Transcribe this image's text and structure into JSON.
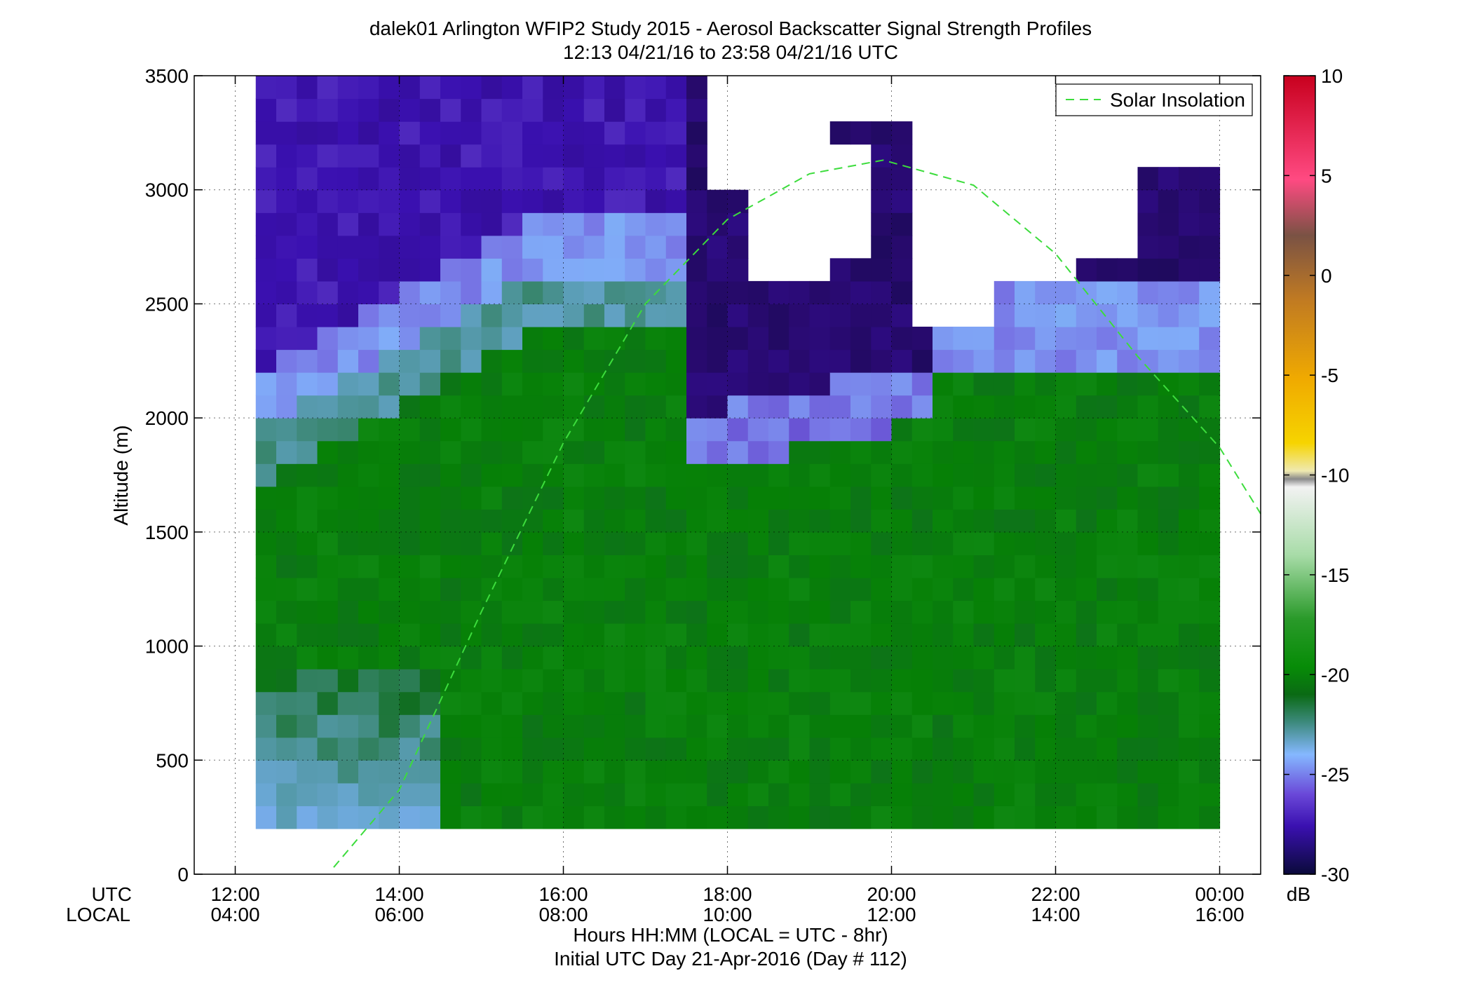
{
  "chart_data": {
    "type": "heatmap",
    "title": "dalek01 Arlington WFIP2 Study 2015 - Aerosol Backscatter Signal Strength Profiles",
    "subtitle": "12:13 04/21/16 to 23:58 04/21/16  UTC",
    "ylabel": "Altitude (m)",
    "xlabel": "Hours HH:MM  (LOCAL = UTC - 8hr)",
    "xlabel2": "Initial UTC Day 21-Apr-2016 (Day # 112)",
    "row_labels": [
      "UTC",
      "LOCAL"
    ],
    "x_ticks_utc": [
      "12:00",
      "14:00",
      "16:00",
      "18:00",
      "20:00",
      "22:00",
      "00:00"
    ],
    "x_ticks_local": [
      "04:00",
      "06:00",
      "08:00",
      "10:00",
      "12:00",
      "14:00",
      "16:00"
    ],
    "x_range_hours_utc": [
      11.5,
      24.5
    ],
    "y_ticks": [
      "0",
      "500",
      "1000",
      "1500",
      "2000",
      "2500",
      "3000",
      "3500"
    ],
    "y_range_m": [
      0,
      3500
    ],
    "grid": true,
    "legend": {
      "placement": "top-right",
      "entries": [
        "Solar Insolation"
      ]
    },
    "colorbar": {
      "label": "dB",
      "ticks": [
        "10",
        "5",
        "0",
        "-5",
        "-10",
        "-15",
        "-20",
        "-25",
        "-30"
      ],
      "range": [
        -30,
        10
      ]
    },
    "cell_size": {
      "hours": 0.25,
      "meters": 100
    },
    "data_x_range_hours_utc": [
      12.25,
      24.0
    ],
    "data_y_range_m": [
      200,
      3500
    ],
    "no_data_regions_hours_utc_m": [
      [
        17.75,
        18.25,
        3000,
        3500
      ],
      [
        18.25,
        19.25,
        2600,
        3500
      ],
      [
        19.25,
        20.25,
        3300,
        3500
      ],
      [
        19.25,
        19.75,
        2700,
        3200
      ],
      [
        20.25,
        21.25,
        2400,
        3500
      ],
      [
        21.25,
        22.25,
        2600,
        3500
      ],
      [
        22.25,
        23.0,
        2700,
        3500
      ],
      [
        23.0,
        24.0,
        3100,
        3500
      ]
    ],
    "dominant_signal_by_layer_db": [
      {
        "layer": "200-900 m, before 14:30 UTC",
        "db": -22
      },
      {
        "layer": "200-2500 m, 14:30-24:00 UTC",
        "db": -18
      },
      {
        "layer": "2500-3500 m, before 17:30 UTC",
        "db": -25
      },
      {
        "layer": "1700-2600 m, 17:30-20:30 UTC",
        "db": -28
      },
      {
        "layer": "2200-2600 m, 21:00-24:00 UTC",
        "db": -23
      }
    ],
    "series": [
      {
        "name": "Solar Insolation",
        "style": "dashed",
        "color": "#3cdc3c",
        "x_hours_utc": [
          13.2,
          14.0,
          15.0,
          16.0,
          17.0,
          18.0,
          19.0,
          19.9,
          21.0,
          22.0,
          23.0,
          24.0,
          24.5
        ],
        "y_m": [
          30,
          370,
          1150,
          1890,
          2500,
          2870,
          3070,
          3130,
          3020,
          2720,
          2270,
          1870,
          1580
        ]
      }
    ]
  }
}
